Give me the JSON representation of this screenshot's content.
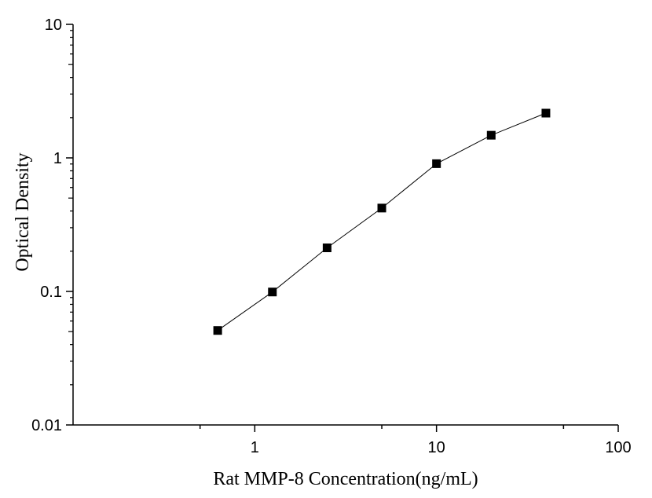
{
  "chart_data": {
    "type": "line",
    "title": "",
    "xlabel": "Rat MMP-8 Concentration(ng/mL)",
    "ylabel": "Optical Density",
    "xscale": "log",
    "yscale": "log",
    "xlim": [
      0.1,
      100
    ],
    "ylim": [
      0.01,
      10
    ],
    "xticks": [
      "1",
      "10",
      "100"
    ],
    "yticks": [
      "10",
      "1",
      "0.1",
      "0.01"
    ],
    "grid": false,
    "legend": "none",
    "marker": "square",
    "series": [
      {
        "x": [
          0.625,
          1.25,
          2.5,
          5,
          10,
          20,
          40
        ],
        "y": [
          0.051,
          0.099,
          0.212,
          0.421,
          0.905,
          1.478,
          2.164
        ]
      }
    ],
    "colors": {
      "line": "#000000",
      "marker": "#000000"
    }
  }
}
